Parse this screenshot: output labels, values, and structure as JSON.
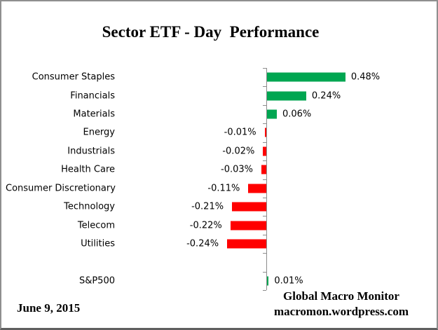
{
  "title": "Sector ETF - Day  Performance",
  "footer": {
    "date": "June 9, 2015",
    "credit_line1": "Global Macro Monitor",
    "credit_line2": "macromon.wordpress.com"
  },
  "colors": {
    "positive": "#00A651",
    "negative": "#FF0000",
    "axis": "#8C8C8C"
  },
  "chart_data": {
    "type": "bar",
    "orientation": "horizontal",
    "title": "Sector ETF - Day  Performance",
    "xlabel": "",
    "ylabel": "",
    "grid": false,
    "legend": false,
    "axis_at_zero": true,
    "value_range_pct": [
      -0.3,
      1.0
    ],
    "categories": [
      "Consumer Staples",
      "Financials",
      "Materials",
      "Energy",
      "Industrials",
      "Health Care",
      "Consumer Discretionary",
      "Technology",
      "Telecom",
      "Utilities",
      "",
      "S&P500"
    ],
    "values": [
      0.48,
      0.24,
      0.06,
      -0.01,
      -0.02,
      -0.03,
      -0.11,
      -0.21,
      -0.22,
      -0.24,
      null,
      0.01
    ],
    "value_labels": [
      "0.48%",
      "0.24%",
      "0.06%",
      "-0.01%",
      "-0.02%",
      "-0.03%",
      "-0.11%",
      "-0.21%",
      "-0.22%",
      "-0.24%",
      "",
      "0.01%"
    ]
  }
}
